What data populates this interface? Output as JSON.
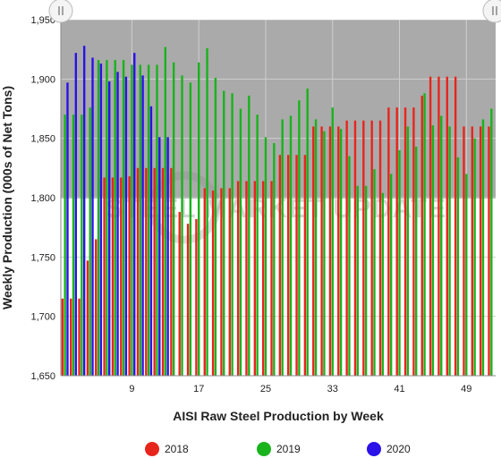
{
  "watermark": "STEEL MARKET UPDATE",
  "chart_data": {
    "type": "bar",
    "title": "",
    "xlabel": "AISI Raw Steel Production by Week",
    "ylabel": "Weekly Production (000s of Net Tons)",
    "ylim": [
      1650,
      1950
    ],
    "yticks": [
      1650,
      1700,
      1750,
      1800,
      1850,
      1900,
      1950
    ],
    "ytick_labels": [
      "1,650",
      "1,700",
      "1,750",
      "1,800",
      "1,850",
      "1,900",
      "1,950"
    ],
    "xlim": [
      1,
      52
    ],
    "xticks": [
      9,
      17,
      25,
      33,
      41,
      49
    ],
    "grid": true,
    "legend": "bottom",
    "series": [
      {
        "name": "2018",
        "color": "#e8251c",
        "x": [
          1,
          2,
          3,
          4,
          5,
          6,
          7,
          8,
          9,
          10,
          11,
          12,
          13,
          14,
          15,
          16,
          17,
          18,
          19,
          20,
          21,
          22,
          23,
          24,
          25,
          26,
          27,
          28,
          29,
          30,
          31,
          32,
          33,
          34,
          35,
          36,
          37,
          38,
          39,
          40,
          41,
          42,
          43,
          44,
          45,
          46,
          47,
          48,
          49,
          50,
          51,
          52
        ],
        "values": [
          1715,
          1715,
          1715,
          1747,
          1765,
          1817,
          1817,
          1817,
          1818,
          1825,
          1825,
          1825,
          1825,
          1825,
          1788,
          1778,
          1782,
          1808,
          1806,
          1808,
          1808,
          1814,
          1814,
          1814,
          1814,
          1814,
          1836,
          1836,
          1836,
          1836,
          1860,
          1860,
          1860,
          1860,
          1865,
          1865,
          1865,
          1865,
          1865,
          1876,
          1876,
          1876,
          1876,
          1886,
          1902,
          1902,
          1902,
          1902,
          1860,
          1860,
          1860,
          1860
        ]
      },
      {
        "name": "2019",
        "color": "#19b31c",
        "x": [
          1,
          2,
          3,
          4,
          5,
          6,
          7,
          8,
          9,
          10,
          11,
          12,
          13,
          14,
          15,
          16,
          17,
          18,
          19,
          20,
          21,
          22,
          23,
          24,
          25,
          26,
          27,
          28,
          29,
          30,
          31,
          32,
          33,
          34,
          35,
          36,
          37,
          38,
          39,
          40,
          41,
          42,
          43,
          44,
          45,
          46,
          47,
          48,
          49,
          50,
          51,
          52
        ],
        "values": [
          1870,
          1870,
          1870,
          1876,
          1916,
          1916,
          1916,
          1916,
          1912,
          1912,
          1912,
          1912,
          1927,
          1914,
          1903,
          1897,
          1914,
          1926,
          1901,
          1890,
          1888,
          1875,
          1886,
          1870,
          1851,
          1846,
          1866,
          1869,
          1882,
          1892,
          1866,
          1856,
          1876,
          1858,
          1835,
          1810,
          1810,
          1824,
          1804,
          1820,
          1840,
          1860,
          1843,
          1888,
          1861,
          1869,
          1860,
          1834,
          1820,
          1850,
          1866,
          1875
        ]
      },
      {
        "name": "2020",
        "color": "#2a12e8",
        "x": [
          1,
          2,
          3,
          4,
          5,
          6,
          7,
          8,
          9,
          10,
          11,
          12,
          13
        ],
        "values": [
          1897,
          1922,
          1928,
          1918,
          1913,
          1898,
          1906,
          1902,
          1922,
          1903,
          1877,
          1851,
          1851
        ]
      }
    ]
  }
}
